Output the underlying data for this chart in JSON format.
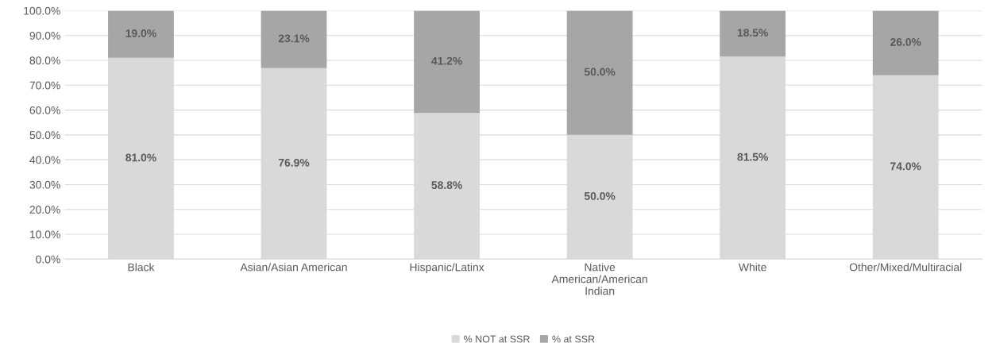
{
  "chart_data": {
    "type": "bar",
    "stacked": true,
    "categories": [
      "Black",
      "Asian/Asian American",
      "Hispanic/Latinx",
      "Native\nAmerican/American\nIndian",
      "White",
      "Other/Mixed/Multiracial"
    ],
    "series": [
      {
        "name": "% NOT at SSR",
        "color": "#d9d9d9",
        "values": [
          81.0,
          76.9,
          58.8,
          50.0,
          81.5,
          74.0
        ],
        "value_labels": [
          "81.0%",
          "76.9%",
          "58.8%",
          "50.0%",
          "81.5%",
          "74.0%"
        ]
      },
      {
        "name": "% at SSR",
        "color": "#a6a6a6",
        "values": [
          19.0,
          23.1,
          41.2,
          50.0,
          18.5,
          26.0
        ],
        "value_labels": [
          "19.0%",
          "23.1%",
          "41.2%",
          "50.0%",
          "18.5%",
          "26.0%"
        ]
      }
    ],
    "ylim": [
      0,
      100
    ],
    "yticks": [
      {
        "value": 0,
        "label": "0.0%"
      },
      {
        "value": 10,
        "label": "10.0%"
      },
      {
        "value": 20,
        "label": "20.0%"
      },
      {
        "value": 30,
        "label": "30.0%"
      },
      {
        "value": 40,
        "label": "40.0%"
      },
      {
        "value": 50,
        "label": "50.0%"
      },
      {
        "value": 60,
        "label": "60.0%"
      },
      {
        "value": 70,
        "label": "70.0%"
      },
      {
        "value": 80,
        "label": "80.0%"
      },
      {
        "value": 90,
        "label": "90.0%"
      },
      {
        "value": 100,
        "label": "100.0%"
      }
    ],
    "grid": "y",
    "legend": "bottom"
  }
}
